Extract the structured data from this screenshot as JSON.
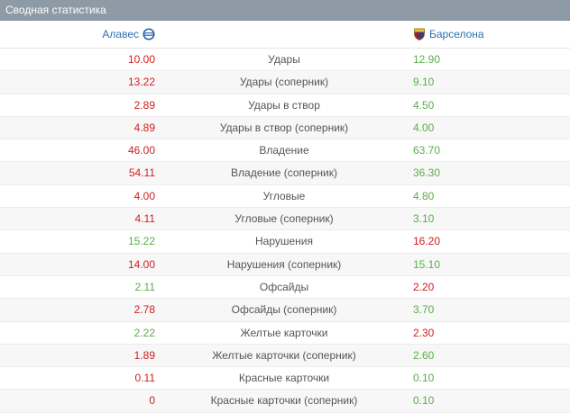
{
  "header": {
    "title": "Сводная статистика"
  },
  "teams": {
    "home": {
      "name": "Алавес",
      "icon": "alaves-crest-icon"
    },
    "away": {
      "name": "Барселона",
      "icon": "barcelona-crest-icon"
    }
  },
  "colors": {
    "red": "#d01e1e",
    "green": "#5aae4a",
    "header_bg": "#8e9aa6",
    "team_link": "#2f6fb3"
  },
  "rows": [
    {
      "label": "Удары",
      "home": "10.00",
      "away": "12.90",
      "home_color": "red",
      "away_color": "green"
    },
    {
      "label": "Удары (соперник)",
      "home": "13.22",
      "away": "9.10",
      "home_color": "red",
      "away_color": "green"
    },
    {
      "label": "Удары в створ",
      "home": "2.89",
      "away": "4.50",
      "home_color": "red",
      "away_color": "green"
    },
    {
      "label": "Удары в створ (соперник)",
      "home": "4.89",
      "away": "4.00",
      "home_color": "red",
      "away_color": "green"
    },
    {
      "label": "Владение",
      "home": "46.00",
      "away": "63.70",
      "home_color": "red",
      "away_color": "green"
    },
    {
      "label": "Владение (соперник)",
      "home": "54.11",
      "away": "36.30",
      "home_color": "red",
      "away_color": "green"
    },
    {
      "label": "Угловые",
      "home": "4.00",
      "away": "4.80",
      "home_color": "red",
      "away_color": "green"
    },
    {
      "label": "Угловые (соперник)",
      "home": "4.11",
      "away": "3.10",
      "home_color": "red",
      "away_color": "green"
    },
    {
      "label": "Нарушения",
      "home": "15.22",
      "away": "16.20",
      "home_color": "green",
      "away_color": "red"
    },
    {
      "label": "Нарушения (соперник)",
      "home": "14.00",
      "away": "15.10",
      "home_color": "red",
      "away_color": "green"
    },
    {
      "label": "Офсайды",
      "home": "2.11",
      "away": "2.20",
      "home_color": "green",
      "away_color": "red"
    },
    {
      "label": "Офсайды (соперник)",
      "home": "2.78",
      "away": "3.70",
      "home_color": "red",
      "away_color": "green"
    },
    {
      "label": "Желтые карточки",
      "home": "2.22",
      "away": "2.30",
      "home_color": "green",
      "away_color": "red"
    },
    {
      "label": "Желтые карточки (соперник)",
      "home": "1.89",
      "away": "2.60",
      "home_color": "red",
      "away_color": "green"
    },
    {
      "label": "Красные карточки",
      "home": "0.11",
      "away": "0.10",
      "home_color": "red",
      "away_color": "green"
    },
    {
      "label": "Красные карточки (соперник)",
      "home": "0",
      "away": "0.10",
      "home_color": "red",
      "away_color": "green"
    }
  ]
}
